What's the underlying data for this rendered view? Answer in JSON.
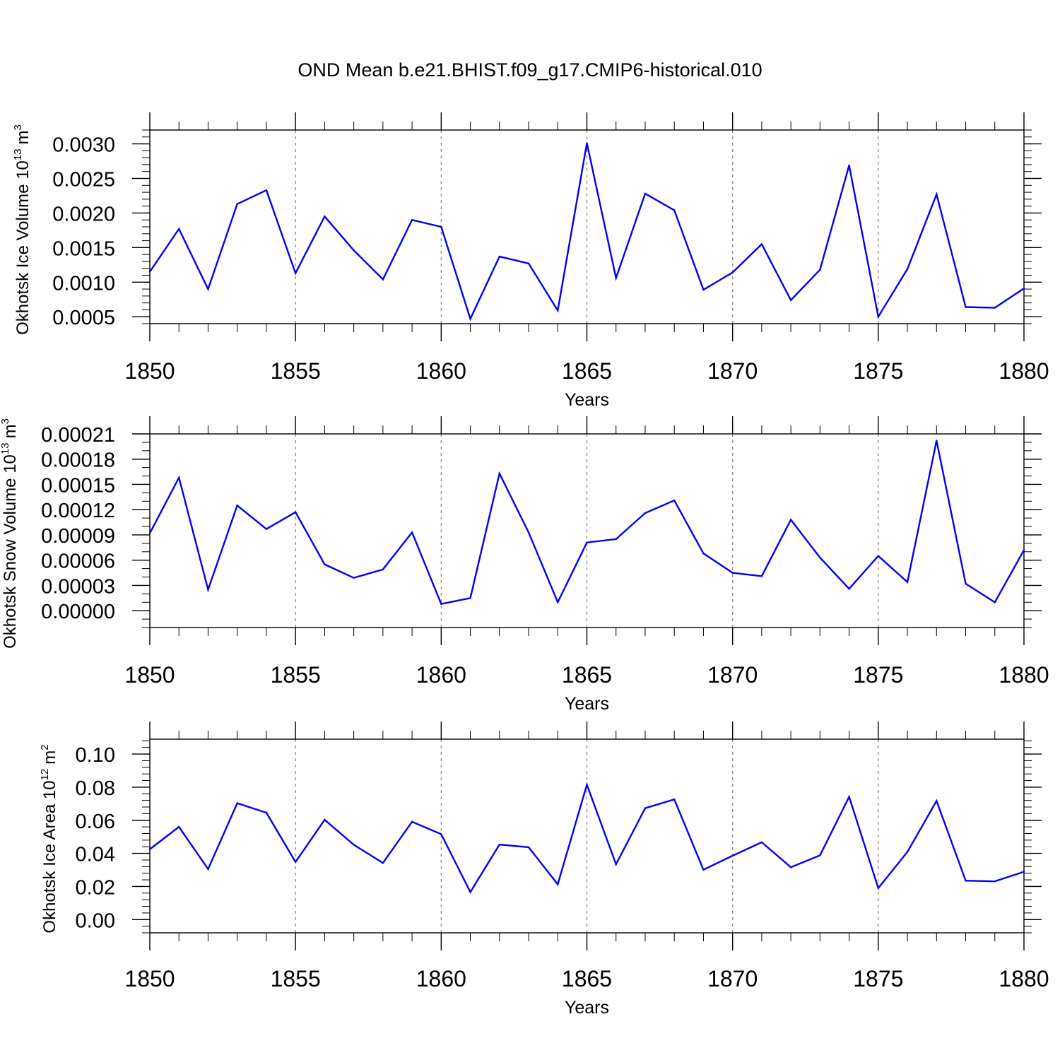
{
  "title": "OND Mean b.e21.BHIST.f09_g17.CMIP6-historical.010",
  "colors": {
    "line": "#0000ff",
    "axis": "#000000",
    "grid": "#808080"
  },
  "chart_data": [
    {
      "type": "line",
      "title": "OND Mean b.e21.BHIST.f09_g17.CMIP6-historical.010",
      "xlabel": "Years",
      "ylabel": "Okhotsk Ice Volume 10",
      "ylabel_exponent": "13",
      "ylabel_unit": "m",
      "ylabel_unit_exponent": "3",
      "xlim": [
        1850,
        1880
      ],
      "ylim": [
        0.0004,
        0.0032
      ],
      "x_ticks": [
        "1850",
        "1855",
        "1860",
        "1865",
        "1870",
        "1875",
        "1880"
      ],
      "y_tick_values": [
        0.0005,
        0.001,
        0.0015,
        0.002,
        0.0025,
        0.003
      ],
      "y_ticks": [
        "0.0005",
        "0.0010",
        "0.0015",
        "0.0020",
        "0.0025",
        "0.0030"
      ],
      "y_minor_step": 0.0001,
      "grid": "dashed vertical at major x ticks",
      "x": [
        1850,
        1851,
        1852,
        1853,
        1854,
        1855,
        1856,
        1857,
        1858,
        1859,
        1860,
        1861,
        1862,
        1863,
        1864,
        1865,
        1866,
        1867,
        1868,
        1869,
        1870,
        1871,
        1872,
        1873,
        1874,
        1875,
        1876,
        1877,
        1878,
        1879,
        1880
      ],
      "values": [
        0.00115,
        0.00177,
        0.0009,
        0.00213,
        0.00233,
        0.00113,
        0.00195,
        0.00146,
        0.00104,
        0.0019,
        0.0018,
        0.00047,
        0.00137,
        0.00127,
        0.00059,
        0.00301,
        0.00106,
        0.00228,
        0.00204,
        0.00089,
        0.00114,
        0.00155,
        0.00074,
        0.00118,
        0.00269,
        0.0005,
        0.00119,
        0.00227,
        0.00064,
        0.00063,
        0.00091
      ]
    },
    {
      "type": "line",
      "xlabel": "Years",
      "ylabel": "Okhotsk Snow Volume 10",
      "ylabel_exponent": "13",
      "ylabel_unit": "m",
      "ylabel_unit_exponent": "3",
      "xlim": [
        1850,
        1880
      ],
      "ylim": [
        -2e-05,
        0.00021
      ],
      "x_ticks": [
        "1850",
        "1855",
        "1860",
        "1865",
        "1870",
        "1875",
        "1880"
      ],
      "y_tick_values": [
        0,
        3e-05,
        6e-05,
        9e-05,
        0.00012,
        0.00015,
        0.00018,
        0.00021
      ],
      "y_ticks": [
        "0.00000",
        "0.00003",
        "0.00006",
        "0.00009",
        "0.00012",
        "0.00015",
        "0.00018",
        "0.00021"
      ],
      "y_minor_step": 1e-05,
      "grid": "dashed vertical at major x ticks",
      "x": [
        1850,
        1851,
        1852,
        1853,
        1854,
        1855,
        1856,
        1857,
        1858,
        1859,
        1860,
        1861,
        1862,
        1863,
        1864,
        1865,
        1866,
        1867,
        1868,
        1869,
        1870,
        1871,
        1872,
        1873,
        1874,
        1875,
        1876,
        1877,
        1878,
        1879,
        1880
      ],
      "values": [
        9.2e-05,
        0.000158,
        2.5e-05,
        0.000125,
        9.7e-05,
        0.000117,
        5.5e-05,
        3.9e-05,
        4.9e-05,
        9.3e-05,
        8e-06,
        1.5e-05,
        0.000163,
        9.3e-05,
        1e-05,
        8.1e-05,
        8.5e-05,
        0.000116,
        0.000131,
        6.8e-05,
        4.5e-05,
        4.1e-05,
        0.000108,
        6.3e-05,
        2.6e-05,
        6.5e-05,
        3.4e-05,
        0.000202,
        3.2e-05,
        1e-05,
        7.2e-05
      ]
    },
    {
      "type": "line",
      "xlabel": "Years",
      "ylabel": "Okhotsk Ice Area 10",
      "ylabel_exponent": "12",
      "ylabel_unit": "m",
      "ylabel_unit_exponent": "2",
      "xlim": [
        1850,
        1880
      ],
      "ylim": [
        -0.008,
        0.109
      ],
      "x_ticks": [
        "1850",
        "1855",
        "1860",
        "1865",
        "1870",
        "1875",
        "1880"
      ],
      "y_tick_values": [
        0,
        0.02,
        0.04,
        0.06,
        0.08,
        0.1
      ],
      "y_ticks": [
        "0.00",
        "0.02",
        "0.04",
        "0.06",
        "0.08",
        "0.10"
      ],
      "y_minor_step": 0.004,
      "grid": "dashed vertical at major x ticks",
      "x": [
        1850,
        1851,
        1852,
        1853,
        1854,
        1855,
        1856,
        1857,
        1858,
        1859,
        1860,
        1861,
        1862,
        1863,
        1864,
        1865,
        1866,
        1867,
        1868,
        1869,
        1870,
        1871,
        1872,
        1873,
        1874,
        1875,
        1876,
        1877,
        1878,
        1879,
        1880
      ],
      "values": [
        0.0425,
        0.056,
        0.0305,
        0.0703,
        0.0646,
        0.0348,
        0.0603,
        0.0452,
        0.0342,
        0.0591,
        0.0516,
        0.0166,
        0.0453,
        0.0437,
        0.0213,
        0.0815,
        0.0334,
        0.0673,
        0.0726,
        0.0301,
        0.0386,
        0.0467,
        0.0316,
        0.0388,
        0.0742,
        0.019,
        0.0409,
        0.0717,
        0.0235,
        0.0231,
        0.0289
      ]
    }
  ]
}
